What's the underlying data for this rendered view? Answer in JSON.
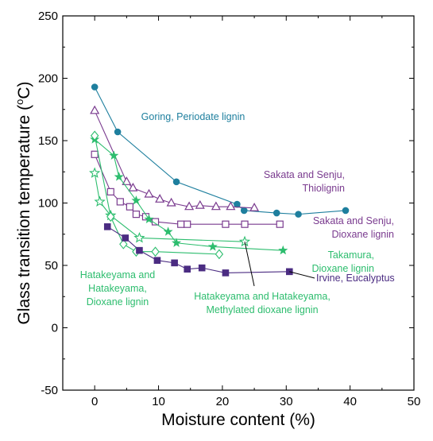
{
  "chart_data": {
    "type": "line",
    "xlabel": "Moisture content (%)",
    "ylabel": "Glass transition temperature (°C)",
    "ylabel_prefix": "Glass transition temperature (",
    "ylabel_degree": "o",
    "ylabel_suffix": "C)",
    "xlim": [
      -5,
      50
    ],
    "ylim": [
      -50,
      250
    ],
    "xticks": [
      0,
      10,
      20,
      30,
      40,
      50
    ],
    "yticks": [
      -50,
      0,
      50,
      100,
      150,
      200,
      250
    ],
    "grid": false,
    "legend": "none",
    "series": [
      {
        "key": "goring",
        "label_lines": [
          "Goring, Periodate lignin"
        ],
        "color": "#1e7f9e",
        "marker": "circle-filled",
        "x": [
          0,
          3.6,
          12.8,
          22.3,
          23.4,
          28.5,
          31.9,
          39.3
        ],
        "y": [
          193,
          157,
          117,
          99,
          94,
          92,
          91,
          94
        ]
      },
      {
        "key": "sakata-thio",
        "label_lines": [
          "Sakata and Senju,",
          "Thiolignin"
        ],
        "color": "#7a3b8f",
        "marker": "triangle-open",
        "x": [
          0,
          5.0,
          6.0,
          8.5,
          10.2,
          12.0,
          14.8,
          16.5,
          19.0,
          21.3,
          25.0
        ],
        "y": [
          174,
          117,
          112,
          107,
          103,
          100,
          97,
          98,
          97,
          97,
          96
        ]
      },
      {
        "key": "sakata-dioxane",
        "label_lines": [
          "Sakata and Senju,",
          "Dioxane lignin"
        ],
        "color": "#7a3b8f",
        "marker": "square-open",
        "x": [
          0,
          2.5,
          4.0,
          5.5,
          6.5,
          8.0,
          9.5,
          13.5,
          14.5,
          20.5,
          23.5,
          29.0
        ],
        "y": [
          139,
          109,
          101,
          97,
          91,
          89,
          85,
          83,
          83,
          83,
          83,
          83
        ]
      },
      {
        "key": "takamura",
        "label_lines": [
          "Takamura,",
          "Dioxane lignin"
        ],
        "color": "#2dbd6e",
        "marker": "star-filled",
        "x": [
          0,
          3.0,
          3.8,
          6.5,
          8.5,
          11.5,
          12.8,
          18.5,
          29.5
        ],
        "y": [
          151,
          138,
          121,
          102,
          87,
          77,
          68,
          65,
          62
        ]
      },
      {
        "key": "hatakeyama-methylated",
        "label_lines": [
          "Hatakeyama and Hatakeyama,",
          "Methylated dioxane lignin"
        ],
        "color": "#2dbd6e",
        "marker": "star-open",
        "x": [
          0,
          0.8,
          2.5,
          7.0,
          23.5
        ],
        "y": [
          124,
          101,
          90,
          72,
          69
        ]
      },
      {
        "key": "hatakeyama-dioxane",
        "label_lines": [
          "Hatakeyama and",
          "Hatakeyama,",
          "Dioxane lignin"
        ],
        "color": "#2dbd6e",
        "marker": "diamond-open",
        "x": [
          0,
          2.5,
          4.5,
          6.5,
          9.5,
          19.5
        ],
        "y": [
          154,
          89,
          67,
          61,
          61,
          59
        ]
      },
      {
        "key": "irvine",
        "label_lines": [
          "Irvine, Eucalyptus"
        ],
        "color": "#4b2c82",
        "marker": "square-filled",
        "x": [
          2.0,
          4.8,
          7.0,
          9.8,
          12.5,
          14.5,
          16.8,
          20.5,
          30.5
        ],
        "y": [
          81,
          72,
          62,
          54,
          52,
          47,
          48,
          44,
          45
        ]
      }
    ]
  }
}
